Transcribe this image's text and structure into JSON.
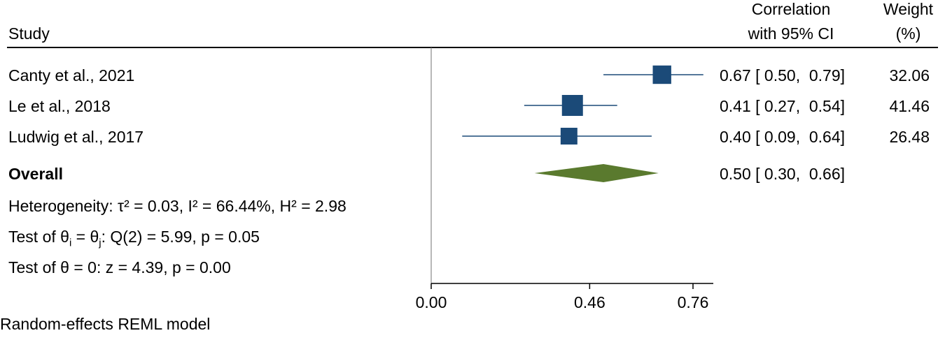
{
  "header": {
    "study": "Study",
    "effect_line1": "Correlation",
    "effect_line2": "with 95% CI",
    "weight_line1": "Weight",
    "weight_line2": "(%)"
  },
  "chart_data": {
    "type": "forest",
    "xlim": [
      0.0,
      0.76
    ],
    "ticks": [
      {
        "value": 0.0,
        "label": "0.00"
      },
      {
        "value": 0.46,
        "label": "0.46"
      },
      {
        "value": 0.76,
        "label": "0.76"
      }
    ],
    "studies": [
      {
        "name": "Canty et al., 2021",
        "estimate": 0.67,
        "lower": 0.5,
        "upper": 0.79,
        "ci_text": "0.67 [ 0.50,  0.79]",
        "weight": 32.06,
        "weight_text": "32.06"
      },
      {
        "name": "Le et al., 2018",
        "estimate": 0.41,
        "lower": 0.27,
        "upper": 0.54,
        "ci_text": "0.41 [ 0.27,  0.54]",
        "weight": 41.46,
        "weight_text": "41.46"
      },
      {
        "name": "Ludwig et al., 2017",
        "estimate": 0.4,
        "lower": 0.09,
        "upper": 0.64,
        "ci_text": "0.40 [ 0.09,  0.64]",
        "weight": 26.48,
        "weight_text": "26.48"
      }
    ],
    "overall": {
      "name": "Overall",
      "estimate": 0.5,
      "lower": 0.3,
      "upper": 0.66,
      "ci_text": "0.50 [ 0.30,  0.66]"
    },
    "stats": {
      "heterogeneity": "Heterogeneity: τ² = 0.03, I² = 66.44%, H² = 2.98",
      "test_theta_pre": "Test of θ",
      "test_theta_i": "i",
      "test_theta_eq": " = θ",
      "test_theta_j": "j",
      "test_theta_post": ": Q(2) = 5.99, p = 0.05",
      "test_zero": "Test of θ = 0: z = 4.39, p = 0.00"
    },
    "footnote": "Random-effects REML model",
    "colors": {
      "study_marker": "#1b4a78",
      "ci_line": "#1b4a78",
      "overall_diamond": "#5a7a2e",
      "axis": "#888888"
    }
  }
}
